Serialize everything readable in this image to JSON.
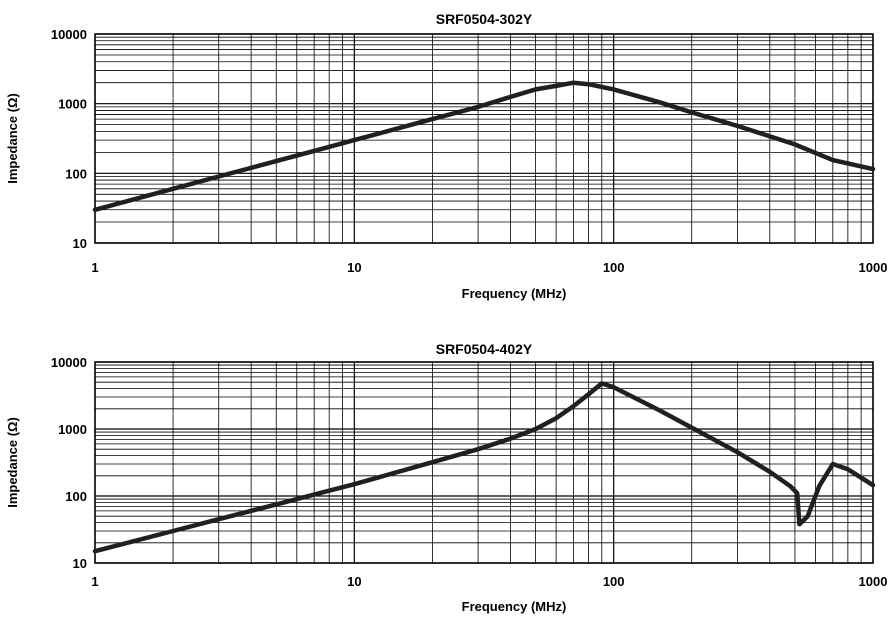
{
  "chart_data": [
    {
      "type": "line",
      "title": "SRF0504-302Y",
      "xlabel": "Frequency (MHz)",
      "ylabel": "Impedance (Ω)",
      "xscale": "log",
      "yscale": "log",
      "xlim": [
        1,
        1000
      ],
      "ylim": [
        10,
        10000
      ],
      "grid": true,
      "xticks": [
        1,
        10,
        100,
        1000
      ],
      "xtick_labels": [
        "1",
        "10",
        "100",
        "1000"
      ],
      "yticks": [
        10,
        100,
        1000,
        10000
      ],
      "ytick_labels": [
        "10",
        "100",
        "1000",
        "10000"
      ],
      "series": [
        {
          "x": [
            1,
            2,
            3,
            5,
            7,
            10,
            20,
            30,
            40,
            50,
            60,
            70,
            80,
            100,
            150,
            200,
            300,
            500,
            700,
            1000
          ],
          "y": [
            30,
            60,
            90,
            150,
            210,
            300,
            600,
            900,
            1250,
            1600,
            1800,
            2000,
            1900,
            1600,
            1050,
            750,
            480,
            260,
            155,
            115
          ]
        }
      ]
    },
    {
      "type": "line",
      "title": "SRF0504-402Y",
      "xlabel": "Frequency (MHz)",
      "ylabel": "Impedance (Ω)",
      "xscale": "log",
      "yscale": "log",
      "xlim": [
        1,
        1000
      ],
      "ylim": [
        10,
        10000
      ],
      "grid": true,
      "xticks": [
        1,
        10,
        100,
        1000
      ],
      "xtick_labels": [
        "1",
        "10",
        "100",
        "1000"
      ],
      "yticks": [
        10,
        100,
        1000,
        10000
      ],
      "ytick_labels": [
        "10",
        "100",
        "1000",
        "10000"
      ],
      "series": [
        {
          "x": [
            1,
            2,
            3,
            5,
            7,
            10,
            20,
            30,
            40,
            50,
            60,
            70,
            80,
            90,
            100,
            150,
            200,
            300,
            400,
            480,
            510,
            520,
            560,
            620,
            700,
            800,
            1000
          ],
          "y": [
            15,
            30,
            45,
            75,
            105,
            150,
            320,
            500,
            720,
            1000,
            1450,
            2200,
            3300,
            4800,
            4200,
            1900,
            1050,
            450,
            230,
            140,
            110,
            38,
            50,
            140,
            300,
            250,
            145
          ]
        }
      ]
    }
  ]
}
